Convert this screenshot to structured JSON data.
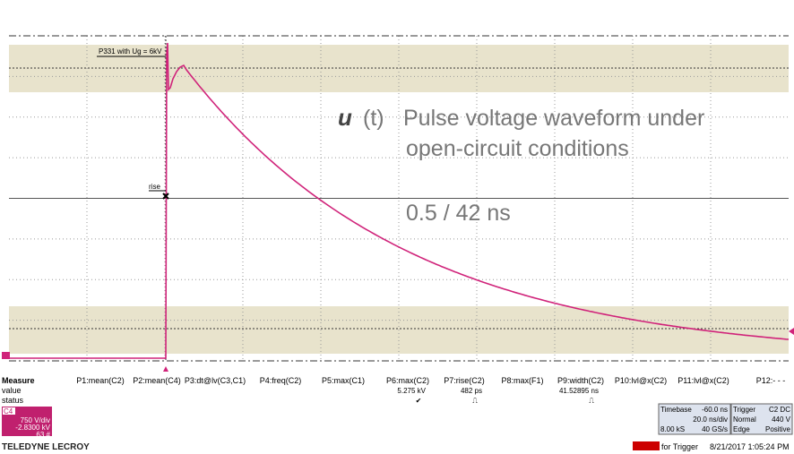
{
  "plot": {
    "annotation": "P331 with Ug = 6kV",
    "cursor_label": "rise",
    "title_symbol": "u",
    "title_arg": "(t)",
    "title_lines": [
      "Pulse voltage waveform under",
      "open-circuit conditions"
    ],
    "timing": "0.5 / 42 ns"
  },
  "measure": {
    "labels": [
      "Measure",
      "value",
      "status"
    ],
    "params": [
      {
        "name": "P1:mean(C2)"
      },
      {
        "name": "P2:mean(C4)"
      },
      {
        "name": "P3:dt@lv(C3,C1)"
      },
      {
        "name": "P4:freq(C2)"
      },
      {
        "name": "P5:max(C1)"
      },
      {
        "name": "P6:max(C2)",
        "value": "5.275 kV",
        "status": "✔"
      },
      {
        "name": "P7:rise(C2)",
        "value": "482 ps",
        "status": "⎍"
      },
      {
        "name": "P8:max(F1)"
      },
      {
        "name": "P9:width(C2)",
        "value": "41.52895 ns",
        "status": "⎍"
      },
      {
        "name": "P10:lvl@x(C2)"
      },
      {
        "name": "P11:lvl@x(C2)"
      },
      {
        "name": "P12:- - -"
      }
    ]
  },
  "channel": {
    "name": "C4",
    "scale": "750 V/div",
    "offset": "-2.8300 kV",
    "count": "63 #"
  },
  "brand": "TELEDYNE LECROY",
  "timebase": {
    "label": "Timebase",
    "delay": "-60.0 ns",
    "scale": "20.0 ns/div",
    "samples": "8.00 kS",
    "rate": "40 GS/s"
  },
  "trigger": {
    "label": "Trigger",
    "source": "C2 DC",
    "mode": "Normal",
    "level": "440 V",
    "type": "Edge",
    "slope": "Positive"
  },
  "status": {
    "message": "for Trigger",
    "datetime": "8/21/2017 1:05:24 PM"
  }
}
